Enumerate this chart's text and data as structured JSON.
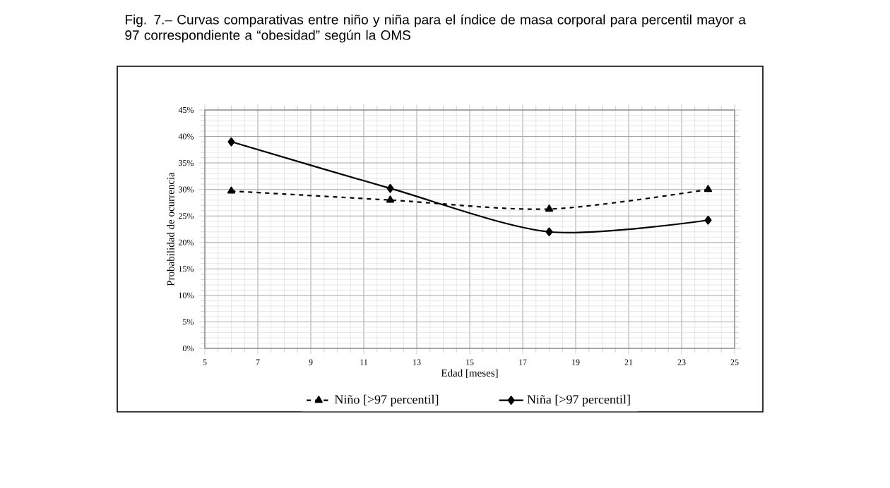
{
  "chart_data": {
    "type": "line",
    "title": "Fig. 7.– Curvas comparativas entre niño y niña para el índice de masa corporal para percentil mayor a 97 correspondiente a “obesidad” según la OMS",
    "xlabel": "Edad [meses]",
    "ylabel": "Probabilidad de ocurrencia",
    "x": [
      6,
      12,
      18,
      24
    ],
    "series": [
      {
        "name": "Niño [>97 percentil]",
        "color": "#000000",
        "values": [
          29.7,
          28.0,
          26.3,
          30.0
        ],
        "marker": "triangle",
        "line_style": "dashed"
      },
      {
        "name": "Niña [>97 percentil]",
        "color": "#000000",
        "values": [
          39.0,
          30.2,
          22.0,
          24.2
        ],
        "marker": "diamond",
        "line_style": "solid"
      }
    ],
    "xlim": [
      5,
      25
    ],
    "xticks": [
      5,
      7,
      9,
      11,
      13,
      15,
      17,
      19,
      21,
      23,
      25
    ],
    "ylim": [
      0,
      45
    ],
    "yticks": [
      {
        "value": 0,
        "label": "0%"
      },
      {
        "value": 5,
        "label": "5%"
      },
      {
        "value": 10,
        "label": "10%"
      },
      {
        "value": 15,
        "label": "15%"
      },
      {
        "value": 20,
        "label": "20%"
      },
      {
        "value": 25,
        "label": "25%"
      },
      {
        "value": 30,
        "label": "30%"
      },
      {
        "value": 35,
        "label": "35%"
      },
      {
        "value": 40,
        "label": "40%"
      },
      {
        "value": 45,
        "label": "45%"
      }
    ],
    "grid": true,
    "legend": "bottom"
  }
}
